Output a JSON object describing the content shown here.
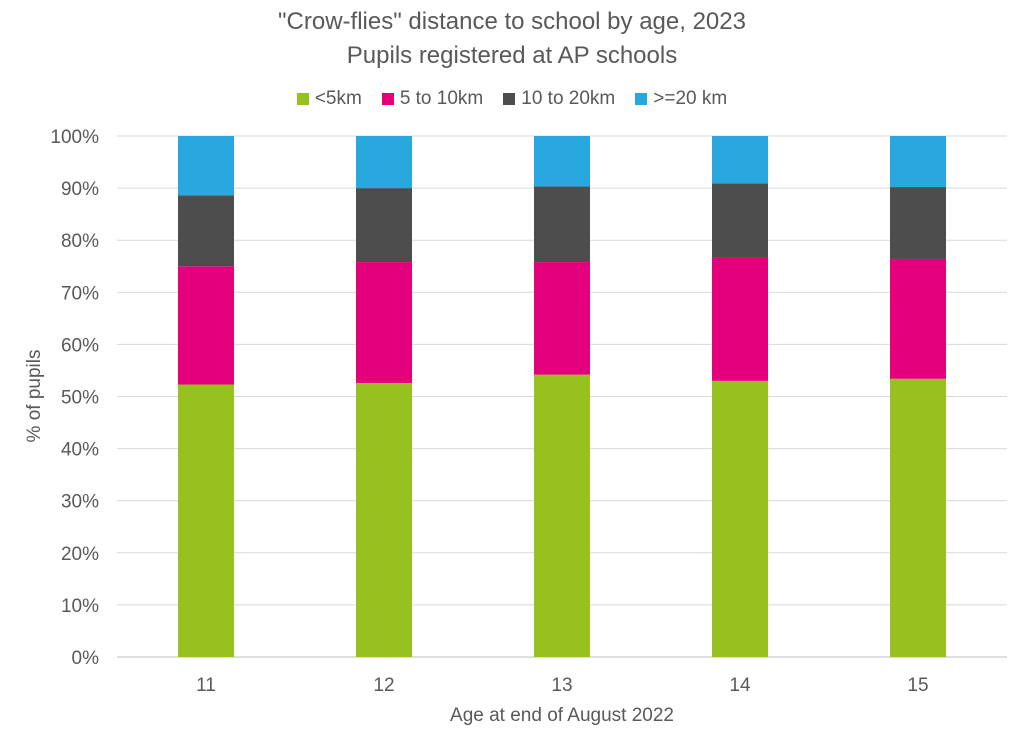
{
  "chart_data": {
    "type": "bar",
    "stacked": true,
    "title": "\"Crow-flies\" distance to school by age, 2023",
    "subtitle": "Pupils registered at AP schools",
    "xlabel": "Age at end of August 2022",
    "ylabel": "% of pupils",
    "ylim": [
      0,
      100
    ],
    "yticks": [
      "0%",
      "10%",
      "20%",
      "30%",
      "40%",
      "50%",
      "60%",
      "70%",
      "80%",
      "90%",
      "100%"
    ],
    "grid": true,
    "legend_position": "top",
    "categories": [
      "11",
      "12",
      "13",
      "14",
      "15"
    ],
    "series": [
      {
        "name": "<5km",
        "color": "#97C11F",
        "values": [
          52.3,
          52.6,
          54.2,
          53.0,
          53.4
        ]
      },
      {
        "name": "5 to 10km",
        "color": "#E4007D",
        "values": [
          22.7,
          23.2,
          21.6,
          23.6,
          23.0
        ]
      },
      {
        "name": "10 to 20km",
        "color": "#4D4D4D",
        "values": [
          13.6,
          14.2,
          14.5,
          14.3,
          13.8
        ]
      },
      {
        "name": ">=20 km",
        "color": "#29A8E0",
        "values": [
          11.4,
          10.0,
          9.7,
          9.1,
          9.8
        ]
      }
    ]
  }
}
